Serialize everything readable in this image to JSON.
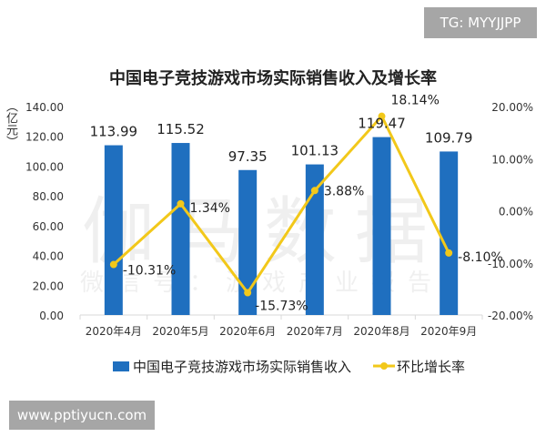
{
  "overlay": {
    "top_right": "TG: MYYJJPP",
    "bottom_left": "www.pptiyucn.com"
  },
  "watermark": {
    "main": "伽马数据",
    "sub": "微信号：游戏产业报告"
  },
  "chart_data": {
    "type": "bar+line",
    "title": "中国电子竞技游戏市场实际销售收入及增长率",
    "ylabel": "（亿元）",
    "categories": [
      "2020年4月",
      "2020年5月",
      "2020年6月",
      "2020年7月",
      "2020年8月",
      "2020年9月"
    ],
    "series": [
      {
        "name": "中国电子竞技游戏市场实际销售收入",
        "type": "bar",
        "axis": "left",
        "color": "#1f6fbf",
        "values": [
          113.99,
          115.52,
          97.35,
          101.13,
          119.47,
          109.79
        ],
        "labels": [
          "113.99",
          "115.52",
          "97.35",
          "101.13",
          "119.47",
          "109.79"
        ]
      },
      {
        "name": "环比增长率",
        "type": "line",
        "axis": "right",
        "color": "#f2c81a",
        "values": [
          -10.31,
          1.34,
          -15.73,
          3.88,
          18.14,
          -8.1
        ],
        "labels": [
          "-10.31%",
          "1.34%",
          "-15.73%",
          "3.88%",
          "18.14%",
          "-8.10%"
        ]
      }
    ],
    "y_left": {
      "range": [
        0,
        140
      ],
      "ticks": [
        "0.00",
        "20.00",
        "40.00",
        "60.00",
        "80.00",
        "100.00",
        "120.00",
        "140.00"
      ]
    },
    "y_right": {
      "range": [
        -20,
        20
      ],
      "ticks": [
        "-20.00%",
        "-10.00%",
        "0.00%",
        "10.00%",
        "20.00%"
      ]
    },
    "grid": false,
    "legend": "bottom"
  }
}
